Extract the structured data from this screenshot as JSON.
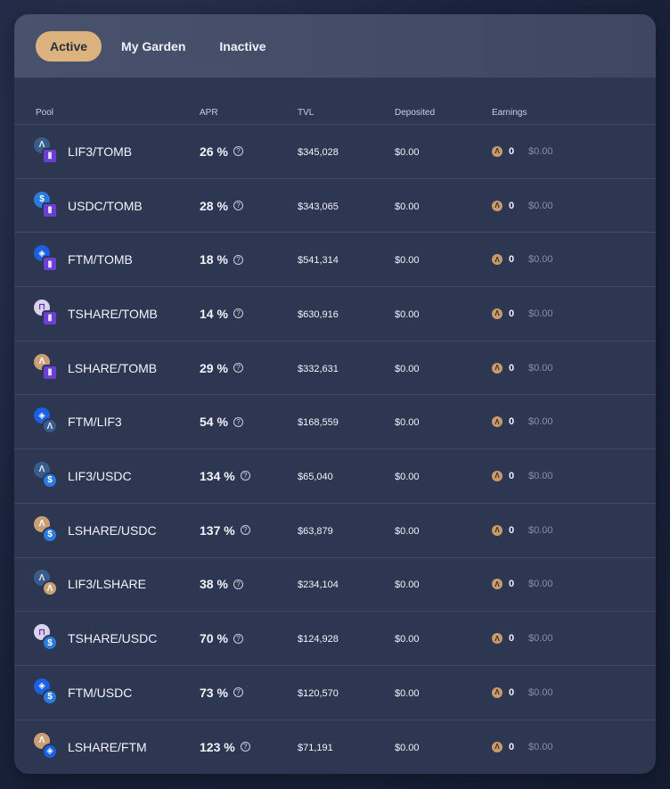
{
  "tabs": [
    {
      "label": "Active",
      "active": true
    },
    {
      "label": "My Garden",
      "active": false
    },
    {
      "label": "Inactive",
      "active": false
    }
  ],
  "columns": {
    "pool": "Pool",
    "apr": "APR",
    "tvl": "TVL",
    "deposited": "Deposited",
    "earnings": "Earnings"
  },
  "token_glyphs": {
    "LIF3": "Λ",
    "USDC": "$",
    "FTM": "◈",
    "TSHARE": "⊓",
    "LSHARE": "Λ",
    "TOMB": "▮"
  },
  "colors": {
    "accent": "#dcb37f",
    "panel": "#2d3752",
    "muted_text": "#8590a8"
  },
  "rows": [
    {
      "pool": "LIF3/TOMB",
      "tokenA": "LIF3",
      "tokenB": "TOMB",
      "apr": "26 %",
      "tvl": "$345,028",
      "deposited": "$0.00",
      "earn_amount": "0",
      "earn_usd": "$0.00"
    },
    {
      "pool": "USDC/TOMB",
      "tokenA": "USDC",
      "tokenB": "TOMB",
      "apr": "28 %",
      "tvl": "$343,065",
      "deposited": "$0.00",
      "earn_amount": "0",
      "earn_usd": "$0.00"
    },
    {
      "pool": "FTM/TOMB",
      "tokenA": "FTM",
      "tokenB": "TOMB",
      "apr": "18 %",
      "tvl": "$541,314",
      "deposited": "$0.00",
      "earn_amount": "0",
      "earn_usd": "$0.00"
    },
    {
      "pool": "TSHARE/TOMB",
      "tokenA": "TSHARE",
      "tokenB": "TOMB",
      "apr": "14 %",
      "tvl": "$630,916",
      "deposited": "$0.00",
      "earn_amount": "0",
      "earn_usd": "$0.00"
    },
    {
      "pool": "LSHARE/TOMB",
      "tokenA": "LSHARE",
      "tokenB": "TOMB",
      "apr": "29 %",
      "tvl": "$332,631",
      "deposited": "$0.00",
      "earn_amount": "0",
      "earn_usd": "$0.00"
    },
    {
      "pool": "FTM/LIF3",
      "tokenA": "FTM",
      "tokenB": "LIF3",
      "apr": "54 %",
      "tvl": "$168,559",
      "deposited": "$0.00",
      "earn_amount": "0",
      "earn_usd": "$0.00"
    },
    {
      "pool": "LIF3/USDC",
      "tokenA": "LIF3",
      "tokenB": "USDC",
      "apr": "134 %",
      "tvl": "$65,040",
      "deposited": "$0.00",
      "earn_amount": "0",
      "earn_usd": "$0.00"
    },
    {
      "pool": "LSHARE/USDC",
      "tokenA": "LSHARE",
      "tokenB": "USDC",
      "apr": "137 %",
      "tvl": "$63,879",
      "deposited": "$0.00",
      "earn_amount": "0",
      "earn_usd": "$0.00"
    },
    {
      "pool": "LIF3/LSHARE",
      "tokenA": "LIF3",
      "tokenB": "LSHARE",
      "apr": "38 %",
      "tvl": "$234,104",
      "deposited": "$0.00",
      "earn_amount": "0",
      "earn_usd": "$0.00"
    },
    {
      "pool": "TSHARE/USDC",
      "tokenA": "TSHARE",
      "tokenB": "USDC",
      "apr": "70 %",
      "tvl": "$124,928",
      "deposited": "$0.00",
      "earn_amount": "0",
      "earn_usd": "$0.00"
    },
    {
      "pool": "FTM/USDC",
      "tokenA": "FTM",
      "tokenB": "USDC",
      "apr": "73 %",
      "tvl": "$120,570",
      "deposited": "$0.00",
      "earn_amount": "0",
      "earn_usd": "$0.00"
    },
    {
      "pool": "LSHARE/FTM",
      "tokenA": "LSHARE",
      "tokenB": "FTM",
      "apr": "123 %",
      "tvl": "$71,191",
      "deposited": "$0.00",
      "earn_amount": "0",
      "earn_usd": "$0.00"
    }
  ]
}
